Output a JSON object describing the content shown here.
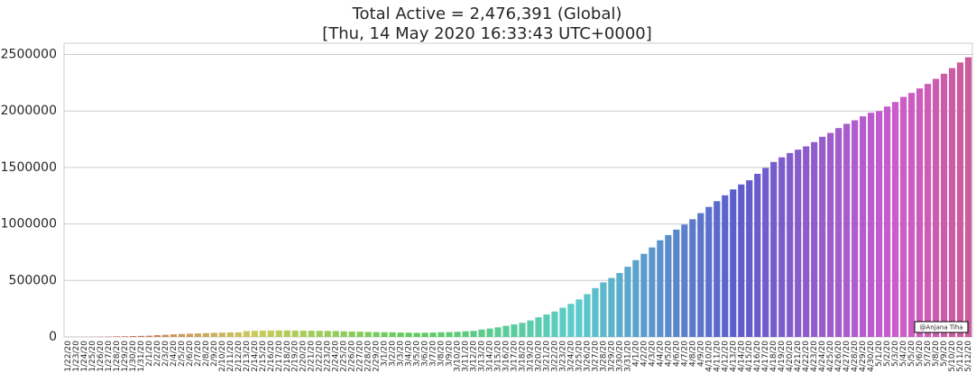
{
  "chart_data": {
    "type": "bar",
    "title": [
      "Total Active = 2,476,391 (Global)",
      "[Thu, 14 May 2020 16:33:43 UTC+0000]"
    ],
    "annotation": "@Anjana Tiha",
    "palette": "husl",
    "grid": true,
    "ylim": [
      0,
      2600000
    ],
    "yticks": [
      0,
      500000,
      1000000,
      1500000,
      2000000,
      2500000
    ],
    "categories": [
      "1/22/20",
      "1/23/20",
      "1/24/20",
      "1/25/20",
      "1/26/20",
      "1/27/20",
      "1/28/20",
      "1/29/20",
      "1/30/20",
      "1/31/20",
      "2/1/20",
      "2/2/20",
      "2/3/20",
      "2/4/20",
      "2/5/20",
      "2/6/20",
      "2/7/20",
      "2/8/20",
      "2/9/20",
      "2/10/20",
      "2/11/20",
      "2/12/20",
      "2/13/20",
      "2/14/20",
      "2/15/20",
      "2/16/20",
      "2/17/20",
      "2/18/20",
      "2/19/20",
      "2/20/20",
      "2/21/20",
      "2/22/20",
      "2/23/20",
      "2/24/20",
      "2/25/20",
      "2/26/20",
      "2/27/20",
      "2/28/20",
      "2/29/20",
      "3/1/20",
      "3/2/20",
      "3/3/20",
      "3/4/20",
      "3/5/20",
      "3/6/20",
      "3/7/20",
      "3/8/20",
      "3/9/20",
      "3/10/20",
      "3/11/20",
      "3/12/20",
      "3/13/20",
      "3/14/20",
      "3/15/20",
      "3/16/20",
      "3/17/20",
      "3/18/20",
      "3/19/20",
      "3/20/20",
      "3/21/20",
      "3/22/20",
      "3/23/20",
      "3/24/20",
      "3/25/20",
      "3/26/20",
      "3/27/20",
      "3/28/20",
      "3/29/20",
      "3/30/20",
      "3/31/20",
      "4/1/20",
      "4/2/20",
      "4/3/20",
      "4/4/20",
      "4/5/20",
      "4/6/20",
      "4/7/20",
      "4/8/20",
      "4/9/20",
      "4/10/20",
      "4/11/20",
      "4/12/20",
      "4/13/20",
      "4/14/20",
      "4/15/20",
      "4/16/20",
      "4/17/20",
      "4/18/20",
      "4/19/20",
      "4/20/20",
      "4/21/20",
      "4/22/20",
      "4/23/20",
      "4/24/20",
      "4/25/20",
      "4/26/20",
      "4/27/20",
      "4/28/20",
      "4/29/20",
      "4/30/20",
      "5/1/20",
      "5/2/20",
      "5/3/20",
      "5/4/20",
      "5/5/20",
      "5/6/20",
      "5/7/20",
      "5/8/20",
      "5/9/20",
      "5/10/20",
      "5/11/20",
      "5/12/20"
    ],
    "values": [
      510,
      610,
      880,
      1370,
      2010,
      2790,
      5340,
      5880,
      7750,
      9480,
      11400,
      16100,
      19000,
      22800,
      26200,
      28800,
      31600,
      34000,
      36100,
      38300,
      39700,
      40900,
      52000,
      54500,
      55800,
      56900,
      57900,
      58000,
      56600,
      55600,
      55000,
      53800,
      53300,
      52200,
      50000,
      48300,
      46500,
      44400,
      43200,
      41700,
      40900,
      39200,
      37500,
      36600,
      37200,
      38700,
      41400,
      42800,
      45200,
      50300,
      53500,
      66000,
      74500,
      85200,
      98700,
      111000,
      125000,
      146000,
      174000,
      199000,
      225000,
      259000,
      293000,
      332000,
      379000,
      432000,
      483000,
      522000,
      566000,
      621000,
      680000,
      736000,
      792000,
      856000,
      902000,
      950000,
      995000,
      1042000,
      1096000,
      1151000,
      1202000,
      1254000,
      1306000,
      1350000,
      1387000,
      1444000,
      1496000,
      1549000,
      1590000,
      1628000,
      1658000,
      1687000,
      1725000,
      1772000,
      1806000,
      1849000,
      1887000,
      1918000,
      1953000,
      1985000,
      2000000,
      2040000,
      2080000,
      2125000,
      2160000,
      2200000,
      2240000,
      2285000,
      2330000,
      2380000,
      2430000,
      2476000
    ]
  }
}
